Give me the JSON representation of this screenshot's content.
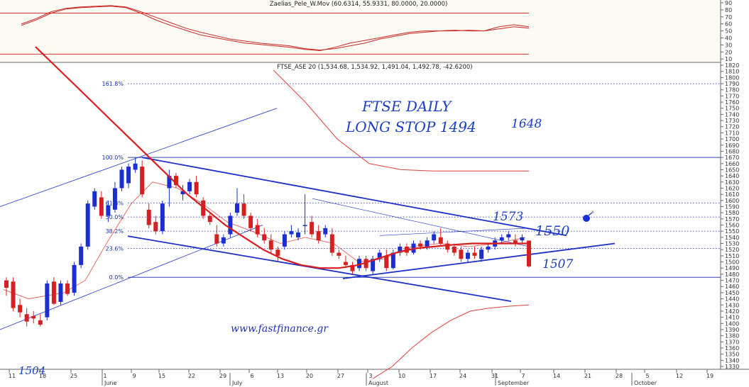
{
  "oscillator": {
    "title": "Zaelias_Pele_W.Mov (60.6314, 55.9331, 80.0000, 20.0000)",
    "y_ticks": [
      "90",
      "80",
      "70",
      "60",
      "50",
      "40",
      "30",
      "20",
      "10"
    ],
    "upper_level": 80,
    "lower_level": 20
  },
  "main": {
    "title": "FTSE_ASE 20 (1,534.68, 1,534.92, 1,491.04, 1,492.78, -42.6200)",
    "y_ticks": [
      "1820",
      "1810",
      "1800",
      "1790",
      "1780",
      "1770",
      "1760",
      "1750",
      "1740",
      "1730",
      "1720",
      "1710",
      "1700",
      "1690",
      "1680",
      "1670",
      "1660",
      "1650",
      "1640",
      "1630",
      "1620",
      "1610",
      "1600",
      "1590",
      "1580",
      "1570",
      "1560",
      "1550",
      "1540",
      "1530",
      "1520",
      "1510",
      "1500",
      "1490",
      "1480",
      "1470",
      "1460",
      "1450",
      "1440",
      "1430",
      "1420",
      "1410",
      "1400",
      "1390",
      "1380",
      "1370",
      "1360",
      "1350",
      "1340",
      "1330"
    ]
  },
  "x_axis": {
    "day_ticks": [
      "11",
      "18",
      "25",
      "1",
      "9",
      "15",
      "22",
      "29",
      "6",
      "13",
      "20",
      "27",
      "3",
      "10",
      "17",
      "24",
      "31",
      "7",
      "14",
      "21",
      "28",
      "5",
      "12",
      "19"
    ],
    "month_labels": [
      "June",
      "July",
      "August",
      "September",
      "October"
    ]
  },
  "fibonacci": {
    "labels": [
      "161.8%",
      "100.0%",
      "61.8%",
      "50.0%",
      "38.2%",
      "23.6%",
      "0.0%"
    ],
    "values": [
      1790,
      1670,
      1596,
      1573,
      1550,
      1522,
      1475
    ]
  },
  "annotations": {
    "line1": "FTSE DAILY",
    "line2": "LONG STOP 1494",
    "target": "1648",
    "level_upper": "1573",
    "level_mid": "1550",
    "level_low": "1507",
    "bottom_left": "1504",
    "website": "www.fastfinance.gr"
  },
  "colors": {
    "up_candle": "#1b2fd0",
    "down_candle": "#d42020",
    "moving_average": "#d81e1e",
    "envelope": "#e04040",
    "trendline": "#1e2fc8",
    "fib_line": "#3545b5",
    "hand_text": "#1a3fc0"
  },
  "chart_data": [
    {
      "type": "line",
      "title": "Zaelias_Pele_W.Mov (60.6314, 55.9331, 80.0000, 20.0000)",
      "ylim": [
        10,
        95
      ],
      "series": [
        {
          "values": [
            62,
            70,
            80,
            86,
            88,
            89,
            90,
            88,
            80,
            70,
            62,
            55,
            48,
            44,
            40,
            36,
            34,
            32,
            30,
            27,
            25,
            30,
            36,
            40,
            44,
            48,
            52,
            54,
            54,
            55,
            54,
            54,
            60,
            63,
            60
          ]
        },
        {
          "values": [
            64,
            72,
            82,
            87,
            89,
            90,
            91,
            89,
            82,
            74,
            66,
            58,
            52,
            47,
            42,
            39,
            36,
            34,
            32,
            28,
            26,
            28,
            32,
            36,
            42,
            46,
            50,
            52,
            54,
            54,
            55,
            54,
            57,
            60,
            58
          ]
        }
      ]
    },
    {
      "type": "candlestick",
      "title": "FTSE_ASE 20 (1,534.68, 1,534.92, 1,491.04, 1,492.78, -42.6200)",
      "ylim": [
        1325,
        1825
      ],
      "candles": [
        {
          "o": 1470,
          "h": 1475,
          "l": 1445,
          "c": 1458
        },
        {
          "o": 1468,
          "h": 1475,
          "l": 1420,
          "c": 1425
        },
        {
          "o": 1430,
          "h": 1440,
          "l": 1410,
          "c": 1418
        },
        {
          "o": 1415,
          "h": 1425,
          "l": 1395,
          "c": 1403
        },
        {
          "o": 1412,
          "h": 1420,
          "l": 1400,
          "c": 1408
        },
        {
          "o": 1405,
          "h": 1415,
          "l": 1395,
          "c": 1398
        },
        {
          "o": 1410,
          "h": 1470,
          "l": 1405,
          "c": 1465
        },
        {
          "o": 1468,
          "h": 1475,
          "l": 1430,
          "c": 1432
        },
        {
          "o": 1435,
          "h": 1470,
          "l": 1430,
          "c": 1465
        },
        {
          "o": 1465,
          "h": 1470,
          "l": 1445,
          "c": 1448
        },
        {
          "o": 1450,
          "h": 1500,
          "l": 1445,
          "c": 1495
        },
        {
          "o": 1495,
          "h": 1530,
          "l": 1490,
          "c": 1525
        },
        {
          "o": 1525,
          "h": 1600,
          "l": 1520,
          "c": 1595
        },
        {
          "o": 1590,
          "h": 1620,
          "l": 1585,
          "c": 1615
        },
        {
          "o": 1605,
          "h": 1615,
          "l": 1570,
          "c": 1575
        },
        {
          "o": 1575,
          "h": 1600,
          "l": 1565,
          "c": 1592
        },
        {
          "o": 1585,
          "h": 1630,
          "l": 1580,
          "c": 1620
        },
        {
          "o": 1620,
          "h": 1655,
          "l": 1615,
          "c": 1650
        },
        {
          "o": 1628,
          "h": 1660,
          "l": 1620,
          "c": 1655
        },
        {
          "o": 1650,
          "h": 1670,
          "l": 1645,
          "c": 1660
        },
        {
          "o": 1655,
          "h": 1665,
          "l": 1605,
          "c": 1610
        },
        {
          "o": 1585,
          "h": 1595,
          "l": 1555,
          "c": 1560
        },
        {
          "o": 1565,
          "h": 1575,
          "l": 1545,
          "c": 1550
        },
        {
          "o": 1550,
          "h": 1600,
          "l": 1545,
          "c": 1595
        },
        {
          "o": 1620,
          "h": 1650,
          "l": 1590,
          "c": 1640
        },
        {
          "o": 1640,
          "h": 1645,
          "l": 1620,
          "c": 1625
        },
        {
          "o": 1610,
          "h": 1625,
          "l": 1600,
          "c": 1615
        },
        {
          "o": 1615,
          "h": 1635,
          "l": 1610,
          "c": 1630
        },
        {
          "o": 1630,
          "h": 1640,
          "l": 1605,
          "c": 1610
        },
        {
          "o": 1600,
          "h": 1605,
          "l": 1570,
          "c": 1575
        },
        {
          "o": 1575,
          "h": 1580,
          "l": 1560,
          "c": 1565
        },
        {
          "o": 1545,
          "h": 1560,
          "l": 1525,
          "c": 1530
        },
        {
          "o": 1530,
          "h": 1545,
          "l": 1525,
          "c": 1540
        },
        {
          "o": 1545,
          "h": 1580,
          "l": 1540,
          "c": 1575
        },
        {
          "o": 1580,
          "h": 1620,
          "l": 1575,
          "c": 1595
        },
        {
          "o": 1595,
          "h": 1610,
          "l": 1570,
          "c": 1575
        },
        {
          "o": 1575,
          "h": 1580,
          "l": 1550,
          "c": 1555
        },
        {
          "o": 1560,
          "h": 1570,
          "l": 1540,
          "c": 1545
        },
        {
          "o": 1545,
          "h": 1555,
          "l": 1530,
          "c": 1535
        },
        {
          "o": 1535,
          "h": 1545,
          "l": 1515,
          "c": 1520
        },
        {
          "o": 1520,
          "h": 1525,
          "l": 1500,
          "c": 1510
        },
        {
          "o": 1525,
          "h": 1550,
          "l": 1520,
          "c": 1545
        },
        {
          "o": 1545,
          "h": 1560,
          "l": 1540,
          "c": 1550
        },
        {
          "o": 1540,
          "h": 1555,
          "l": 1535,
          "c": 1548
        },
        {
          "o": 1560,
          "h": 1610,
          "l": 1545,
          "c": 1560
        },
        {
          "o": 1565,
          "h": 1575,
          "l": 1540,
          "c": 1545
        },
        {
          "o": 1550,
          "h": 1560,
          "l": 1530,
          "c": 1535
        },
        {
          "o": 1545,
          "h": 1560,
          "l": 1540,
          "c": 1555
        },
        {
          "o": 1545,
          "h": 1555,
          "l": 1510,
          "c": 1515
        },
        {
          "o": 1515,
          "h": 1520,
          "l": 1505,
          "c": 1510
        },
        {
          "o": 1500,
          "h": 1510,
          "l": 1490,
          "c": 1495
        },
        {
          "o": 1495,
          "h": 1500,
          "l": 1480,
          "c": 1485
        },
        {
          "o": 1490,
          "h": 1510,
          "l": 1485,
          "c": 1505
        },
        {
          "o": 1505,
          "h": 1510,
          "l": 1485,
          "c": 1490
        },
        {
          "o": 1485,
          "h": 1510,
          "l": 1480,
          "c": 1505
        },
        {
          "o": 1505,
          "h": 1520,
          "l": 1500,
          "c": 1515
        },
        {
          "o": 1510,
          "h": 1520,
          "l": 1485,
          "c": 1490
        },
        {
          "o": 1490,
          "h": 1520,
          "l": 1488,
          "c": 1515
        },
        {
          "o": 1515,
          "h": 1530,
          "l": 1510,
          "c": 1525
        },
        {
          "o": 1525,
          "h": 1530,
          "l": 1510,
          "c": 1515
        },
        {
          "o": 1515,
          "h": 1535,
          "l": 1512,
          "c": 1530
        },
        {
          "o": 1530,
          "h": 1535,
          "l": 1520,
          "c": 1525
        },
        {
          "o": 1525,
          "h": 1540,
          "l": 1520,
          "c": 1535
        },
        {
          "o": 1535,
          "h": 1550,
          "l": 1530,
          "c": 1545
        },
        {
          "o": 1540,
          "h": 1555,
          "l": 1525,
          "c": 1530
        },
        {
          "o": 1530,
          "h": 1535,
          "l": 1515,
          "c": 1520
        },
        {
          "o": 1525,
          "h": 1530,
          "l": 1510,
          "c": 1515
        },
        {
          "o": 1520,
          "h": 1525,
          "l": 1500,
          "c": 1505
        },
        {
          "o": 1505,
          "h": 1520,
          "l": 1500,
          "c": 1515
        },
        {
          "o": 1515,
          "h": 1525,
          "l": 1505,
          "c": 1510
        },
        {
          "o": 1505,
          "h": 1525,
          "l": 1500,
          "c": 1520
        },
        {
          "o": 1520,
          "h": 1530,
          "l": 1515,
          "c": 1525
        },
        {
          "o": 1525,
          "h": 1540,
          "l": 1520,
          "c": 1535
        },
        {
          "o": 1535,
          "h": 1545,
          "l": 1530,
          "c": 1540
        },
        {
          "o": 1540,
          "h": 1550,
          "l": 1535,
          "c": 1545
        },
        {
          "o": 1535,
          "h": 1545,
          "l": 1525,
          "c": 1530
        },
        {
          "o": 1535,
          "h": 1545,
          "l": 1530,
          "c": 1540
        },
        {
          "o": 1534.68,
          "h": 1534.92,
          "l": 1491.04,
          "c": 1492.78
        }
      ],
      "moving_average": [
        1850,
        1820,
        1790,
        1760,
        1730,
        1700,
        1670,
        1640,
        1610,
        1585,
        1560,
        1540,
        1520,
        1505,
        1495,
        1490,
        1490,
        1495,
        1505,
        1515,
        1522,
        1525,
        1528,
        1530,
        1530,
        1530,
        1530
      ],
      "upper_envelope": [
        1812,
        1760,
        1700,
        1660,
        1650,
        1648,
        1648,
        1648,
        1648
      ],
      "lower_envelope": [
        1310,
        1330,
        1360,
        1385,
        1405,
        1420,
        1425,
        1428,
        1430
      ]
    }
  ]
}
